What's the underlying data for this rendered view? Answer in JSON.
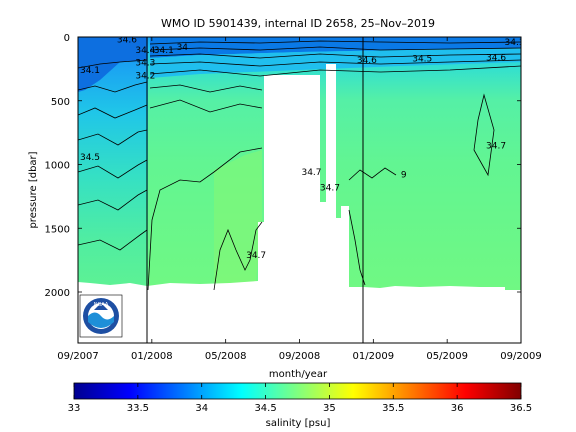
{
  "chart_data": {
    "type": "heatmap",
    "title": "WMO ID 5901439, internal ID 2658, 25–Nov–2019",
    "xlabel": "month/year",
    "ylabel": "pressure [dbar]",
    "x_ticks": [
      "09/2007",
      "01/2008",
      "05/2008",
      "09/2008",
      "01/2009",
      "05/2009",
      "09/2009"
    ],
    "x_range": [
      "09/2007",
      "09/2009"
    ],
    "y_ticks": [
      0,
      500,
      1000,
      1500,
      2000
    ],
    "y_range": [
      2400,
      0
    ],
    "y_reversed": true,
    "colorbar": {
      "label": "salinity [psu]",
      "ticks": [
        "33",
        "33.5",
        "34",
        "34.5",
        "35",
        "35.5",
        "36",
        "36.5"
      ],
      "range": [
        33,
        36.5
      ],
      "colormap": "jet"
    },
    "vertical_markers": [
      "12/2007",
      "12/2008"
    ],
    "contour_levels": [
      34.1,
      34.2,
      34.3,
      34.4,
      34.5,
      34.6,
      34.7
    ],
    "contour_labels": [
      {
        "text": "34.6",
        "x": "11/2007",
        "p": 20
      },
      {
        "text": "34.4",
        "x": "12/2007",
        "p": 100
      },
      {
        "text": "34.1",
        "x": "01/2008",
        "p": 100
      },
      {
        "text": "34",
        "x": "02/2008",
        "p": 80
      },
      {
        "text": "34.1",
        "x": "09/2007",
        "p": 260
      },
      {
        "text": "34.3",
        "x": "12/2007",
        "p": 200
      },
      {
        "text": "34.2",
        "x": "12/2007",
        "p": 300
      },
      {
        "text": "34.5",
        "x": "09/2007",
        "p": 940
      },
      {
        "text": "34.7",
        "x": "06/2008",
        "p": 1710
      },
      {
        "text": "34.7",
        "x": "09/2008",
        "p": 1060
      },
      {
        "text": "34.7",
        "x": "10/2008",
        "p": 1180
      },
      {
        "text": "34.6",
        "x": "12/2008",
        "p": 180
      },
      {
        "text": "34.5",
        "x": "03/2009",
        "p": 170
      },
      {
        "text": "34.6",
        "x": "07/2009",
        "p": 160
      },
      {
        "text": "34.3",
        "x": "08/2009",
        "p": 40
      },
      {
        "text": "34",
        "x": "09/2009",
        "p": 40
      },
      {
        "text": "34.7",
        "x": "07/2009",
        "p": 850
      },
      {
        "text": "9",
        "x": "02/2009",
        "p": 1080
      }
    ],
    "salinity_profile_approx": [
      {
        "p": 0,
        "s": 34.05
      },
      {
        "p": 100,
        "s": 34.2
      },
      {
        "p": 300,
        "s": 34.45
      },
      {
        "p": 600,
        "s": 34.62
      },
      {
        "p": 1000,
        "s": 34.68
      },
      {
        "p": 1500,
        "s": 34.72
      },
      {
        "p": 2000,
        "s": 34.74
      }
    ],
    "data_gaps": [
      {
        "from": "06/2008",
        "to": "08/2008",
        "p_from": 250,
        "p_to": 2000
      },
      {
        "from": "09/2008",
        "to": "10/2008",
        "p_from": 200,
        "p_to": 1950
      },
      {
        "from": "11/2008",
        "to": "11/2008",
        "p_from": 1300,
        "p_to": 2000
      }
    ]
  },
  "logo": {
    "text": "NOAA"
  }
}
